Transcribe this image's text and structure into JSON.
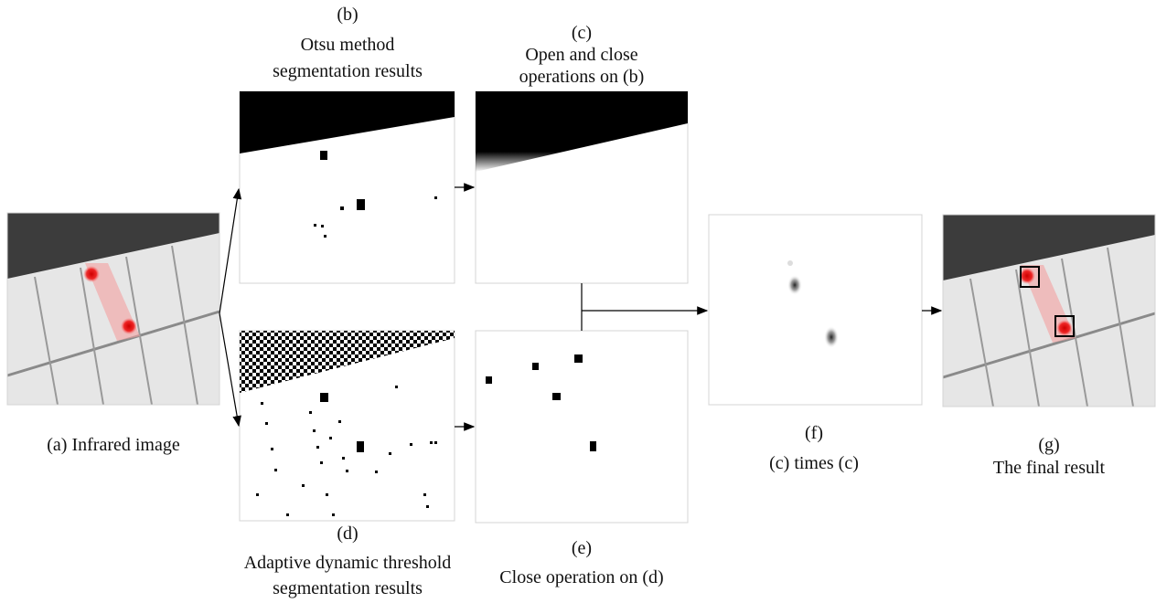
{
  "panels": [
    {
      "label": "(a)",
      "caption": [
        "Infrared image"
      ]
    },
    {
      "label": "(b)",
      "caption": [
        "Otsu method",
        "segmentation results"
      ]
    },
    {
      "label": "(c)",
      "caption": [
        "Open and close",
        "operations on (b)"
      ]
    },
    {
      "label": "(d)",
      "caption": [
        "Adaptive dynamic threshold",
        "segmentation results"
      ]
    },
    {
      "label": "(e)",
      "caption": [
        "Close operation on (d)"
      ]
    },
    {
      "label": "(f)",
      "caption": [
        "(c) times (c)"
      ]
    },
    {
      "label": "(g)",
      "caption": [
        "The final result"
      ]
    }
  ]
}
